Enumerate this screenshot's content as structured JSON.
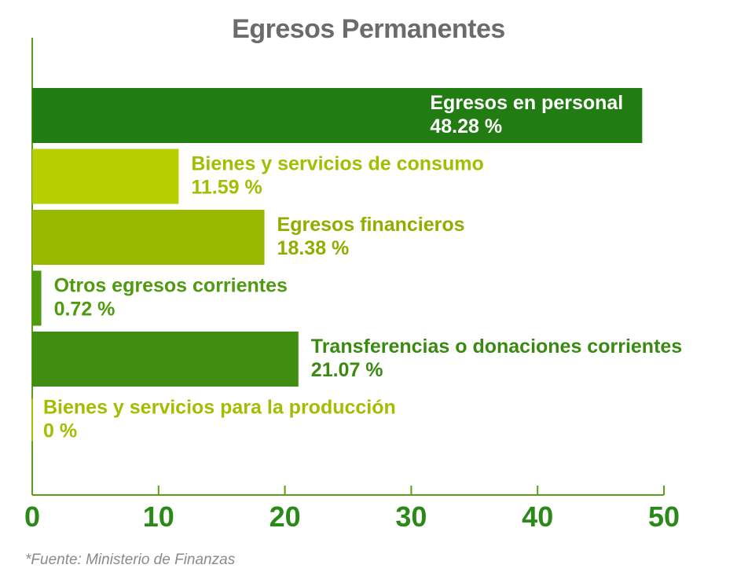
{
  "chart_data": {
    "type": "bar",
    "orientation": "horizontal",
    "title": "Egresos Permanentes",
    "xlim": [
      0,
      50
    ],
    "xticks": [
      0,
      10,
      20,
      30,
      40,
      50
    ],
    "grid": false,
    "bars": [
      {
        "name": "Egresos en personal",
        "value": 48.28,
        "value_label": "48.28 %",
        "color": "#217d12",
        "label_color": "#ffffff",
        "label_inside": true
      },
      {
        "name": "Bienes y servicios de consumo",
        "value": 11.59,
        "value_label": "11.59 %",
        "color": "#b5cf00",
        "label_color": "#a3bd00",
        "label_inside": false
      },
      {
        "name": "Egresos financieros",
        "value": 18.38,
        "value_label": "18.38 %",
        "color": "#98b900",
        "label_color": "#8eae00",
        "label_inside": false
      },
      {
        "name": "Otros egresos corrientes",
        "value": 0.72,
        "value_label": "0.72 %",
        "color": "#4f9a0f",
        "label_color": "#4f9a0f",
        "label_inside": false
      },
      {
        "name": "Transferencias o donaciones corrientes",
        "value": 21.07,
        "value_label": "21.07 %",
        "color": "#3f8e12",
        "label_color": "#3a8a12",
        "label_inside": false
      },
      {
        "name": "Bienes y servicios para la producción",
        "value": 0,
        "value_label": " 0 %",
        "color": "#a3bd00",
        "label_color": "#a3bd00",
        "label_inside": false
      }
    ],
    "axis_color": "#5c9e18"
  },
  "source": "*Fuente: Ministerio de Finanzas"
}
